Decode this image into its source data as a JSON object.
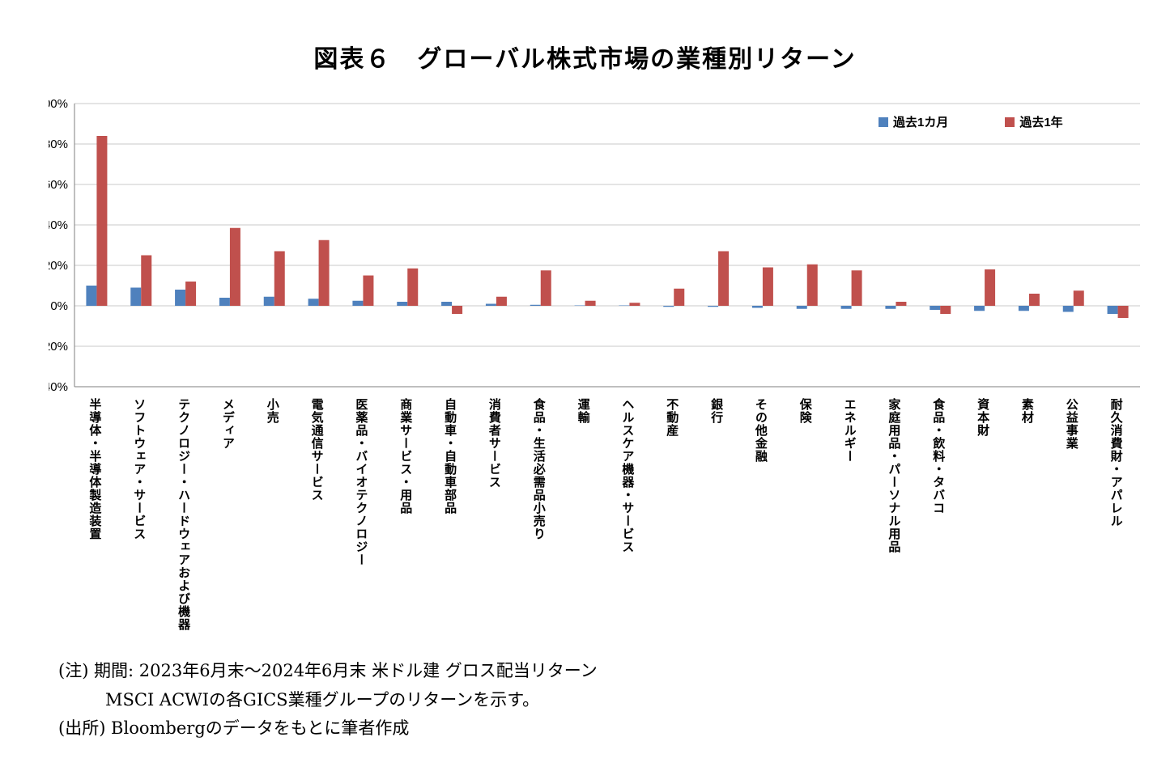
{
  "title": "図表６　グローバル株式市場の業種別リターン",
  "notes": [
    "(注) 期間: 2023年6月末～2024年6月末 米ドル建 グロス配当リターン",
    "MSCI ACWIの各GICS業種グループのリターンを示す。",
    "(出所) Bloombergのデータをもとに筆者作成"
  ],
  "chart_data": {
    "type": "bar",
    "title": "図表６　グローバル株式市場の業種別リターン",
    "categories": [
      "半導体・半導体製造装置",
      "ソフトウェア・サービス",
      "テクノロジー・ハードウェアおよび機器",
      "メディア",
      "小売",
      "電気通信サービス",
      "医薬品・バイオテクノロジー",
      "商業サービス・用品",
      "自動車・自動車部品",
      "消費者サービス",
      "食品・生活必需品小売り",
      "運輸",
      "ヘルスケア機器・サービス",
      "不動産",
      "銀行",
      "その他金融",
      "保険",
      "エネルギー",
      "家庭用品・パーソナル用品",
      "食品・飲料・タバコ",
      "資本財",
      "素材",
      "公益事業",
      "耐久消費財・アパレル"
    ],
    "series": [
      {
        "name": "過去1カ月",
        "color": "#4F81BD",
        "values": [
          10,
          9,
          8,
          4,
          4.5,
          3.5,
          2.5,
          2,
          2,
          1,
          0.5,
          0.2,
          0.2,
          -0.5,
          -0.5,
          -1,
          -1.5,
          -1.5,
          -1.5,
          -2,
          -2.5,
          -2.5,
          -3,
          -4
        ]
      },
      {
        "name": "過去1年",
        "color": "#C0504D",
        "values": [
          84,
          25,
          12,
          38.5,
          27,
          32.5,
          15,
          18.5,
          -4,
          4.5,
          17.5,
          2.5,
          1.5,
          8.5,
          27,
          19,
          20.5,
          17.5,
          2,
          -4,
          18,
          6,
          7.5,
          -6
        ]
      }
    ],
    "xlabel": "",
    "ylabel": "",
    "ylim": [
      -40,
      100
    ],
    "ytick_step": 20,
    "ytick_format": "percent",
    "grid": true,
    "legend_position": "top-right"
  }
}
